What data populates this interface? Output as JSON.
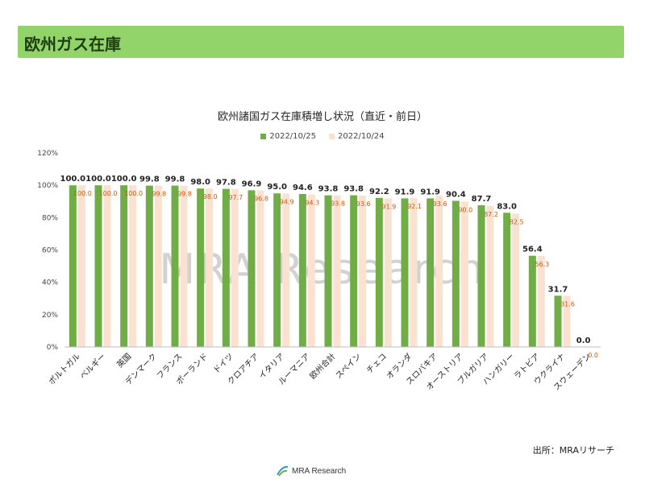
{
  "header": {
    "title": "欧州ガス在庫"
  },
  "source_label": "出所：MRAリサーチ",
  "logo_text": "MRA Research",
  "colors": {
    "series_current": "#70ad47",
    "series_previous": "#fbe2d0",
    "banner": "#92d36a"
  },
  "chart_data": {
    "type": "bar",
    "title": "欧州諸国ガス在庫積増し状況（直近・前日）",
    "categories": [
      "ポルトガル",
      "ベルギー",
      "英国",
      "デンマーク",
      "フランス",
      "ポーランド",
      "ドイツ",
      "クロアチア",
      "イタリア",
      "ルーマニア",
      "欧州合計",
      "スペイン",
      "チェコ",
      "オランダ",
      "スロバキア",
      "オーストリア",
      "ブルガリア",
      "ハンガリー",
      "ラトビア",
      "ウクライナ",
      "スウェーデン"
    ],
    "series": [
      {
        "name": "2022/10/25",
        "values": [
          100.0,
          100.0,
          100.0,
          99.8,
          99.8,
          98.0,
          97.8,
          96.9,
          95.0,
          94.6,
          93.8,
          93.8,
          92.2,
          91.9,
          91.9,
          90.4,
          87.7,
          83.0,
          56.4,
          31.7,
          0.0
        ]
      },
      {
        "name": "2022/10/24",
        "values": [
          100.0,
          100.0,
          100.0,
          99.8,
          99.8,
          98.0,
          97.7,
          96.8,
          94.9,
          94.3,
          93.8,
          93.6,
          91.9,
          92.1,
          93.6,
          90.0,
          87.2,
          82.5,
          56.3,
          31.6,
          0.0
        ]
      }
    ],
    "ylim": [
      0,
      120
    ],
    "yticks": [
      "0%",
      "20%",
      "40%",
      "60%",
      "80%",
      "100%",
      "120%"
    ],
    "legend_position": "top-center",
    "watermark": "MRA Research"
  }
}
